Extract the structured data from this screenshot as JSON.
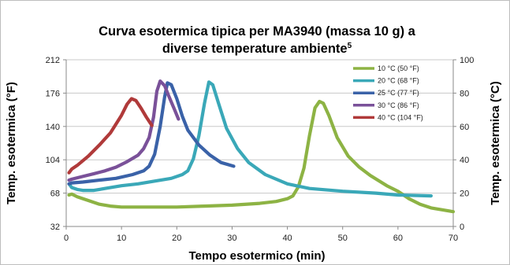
{
  "chart_data": {
    "type": "line",
    "title_line1": "Curva esotermica tipica per MA3940 (massa 10 g) a",
    "title_line2": "diverse temperature ambiente",
    "title_superscript": "5",
    "xlabel": "Tempo esotermico (min)",
    "ylabel_left": "Temp. esotermica (°F)",
    "ylabel_right": "Temp. esotermica (°C)",
    "xlim": [
      0,
      70
    ],
    "xticks": [
      0,
      10,
      20,
      30,
      40,
      50,
      60,
      70
    ],
    "ylim_left": [
      32,
      212
    ],
    "yticks_left": [
      32,
      68,
      104,
      140,
      176,
      212
    ],
    "ylim_right": [
      0,
      100
    ],
    "yticks_right": [
      0,
      20,
      40,
      60,
      80,
      100
    ],
    "grid": "horizontal",
    "legend_position": "top-right",
    "series": [
      {
        "name": "10 °C (50 °F)",
        "color": "#8db344",
        "points": [
          [
            0.5,
            66
          ],
          [
            1,
            67
          ],
          [
            2,
            64
          ],
          [
            4,
            60
          ],
          [
            6,
            56
          ],
          [
            8,
            54
          ],
          [
            10,
            53
          ],
          [
            15,
            53
          ],
          [
            20,
            53
          ],
          [
            25,
            54
          ],
          [
            30,
            55
          ],
          [
            35,
            57
          ],
          [
            38,
            59
          ],
          [
            40,
            62
          ],
          [
            41,
            65
          ],
          [
            42,
            75
          ],
          [
            43,
            95
          ],
          [
            44,
            130
          ],
          [
            45,
            160
          ],
          [
            45.8,
            167
          ],
          [
            46.5,
            165
          ],
          [
            47.5,
            152
          ],
          [
            49,
            128
          ],
          [
            51,
            108
          ],
          [
            53,
            96
          ],
          [
            55,
            87
          ],
          [
            58,
            76
          ],
          [
            60,
            70
          ],
          [
            62,
            62
          ],
          [
            64,
            56
          ],
          [
            66,
            52
          ],
          [
            68,
            50
          ],
          [
            70,
            48
          ]
        ]
      },
      {
        "name": "20 °C (68 °F)",
        "color": "#3aa8b8",
        "points": [
          [
            0.5,
            78
          ],
          [
            1,
            74
          ],
          [
            2,
            72
          ],
          [
            3,
            71
          ],
          [
            4,
            71
          ],
          [
            5,
            71
          ],
          [
            7,
            73
          ],
          [
            10,
            76
          ],
          [
            13,
            78
          ],
          [
            16,
            81
          ],
          [
            19,
            84
          ],
          [
            21,
            88
          ],
          [
            22,
            92
          ],
          [
            23,
            105
          ],
          [
            24,
            130
          ],
          [
            25,
            165
          ],
          [
            25.8,
            188
          ],
          [
            26.5,
            185
          ],
          [
            27.5,
            166
          ],
          [
            29,
            138
          ],
          [
            31,
            116
          ],
          [
            33,
            101
          ],
          [
            36,
            88
          ],
          [
            40,
            78
          ],
          [
            44,
            73
          ],
          [
            50,
            70
          ],
          [
            56,
            68
          ],
          [
            60,
            66
          ],
          [
            66,
            65
          ]
        ]
      },
      {
        "name": "25 °C (77 °F)",
        "color": "#3a62a8",
        "points": [
          [
            0.5,
            78
          ],
          [
            1,
            79
          ],
          [
            3,
            80
          ],
          [
            6,
            82
          ],
          [
            9,
            84
          ],
          [
            12,
            88
          ],
          [
            14,
            92
          ],
          [
            15,
            97
          ],
          [
            16,
            110
          ],
          [
            17,
            140
          ],
          [
            17.8,
            172
          ],
          [
            18.3,
            187
          ],
          [
            19,
            185
          ],
          [
            20,
            170
          ],
          [
            21,
            151
          ],
          [
            22,
            136
          ],
          [
            24,
            120
          ],
          [
            26,
            109
          ],
          [
            28,
            101
          ],
          [
            30.3,
            97
          ]
        ]
      },
      {
        "name": "30 °C (86 °F)",
        "color": "#7a5199",
        "points": [
          [
            0.5,
            82
          ],
          [
            1,
            83
          ],
          [
            3,
            86
          ],
          [
            5,
            89
          ],
          [
            7,
            92
          ],
          [
            9,
            96
          ],
          [
            11,
            102
          ],
          [
            13,
            109
          ],
          [
            14,
            116
          ],
          [
            15,
            128
          ],
          [
            15.8,
            150
          ],
          [
            16.4,
            178
          ],
          [
            17,
            189
          ],
          [
            17.8,
            184
          ],
          [
            18.6,
            172
          ],
          [
            19.6,
            158
          ],
          [
            20.3,
            148
          ]
        ]
      },
      {
        "name": "40 °C (104 °F)",
        "color": "#b03a3a",
        "points": [
          [
            0.5,
            90
          ],
          [
            1,
            94
          ],
          [
            2,
            98
          ],
          [
            4,
            108
          ],
          [
            6,
            120
          ],
          [
            8,
            133
          ],
          [
            10,
            152
          ],
          [
            11,
            164
          ],
          [
            11.8,
            170
          ],
          [
            12.6,
            168
          ],
          [
            13.5,
            160
          ],
          [
            14.5,
            150
          ],
          [
            15.5,
            141
          ]
        ]
      }
    ]
  }
}
